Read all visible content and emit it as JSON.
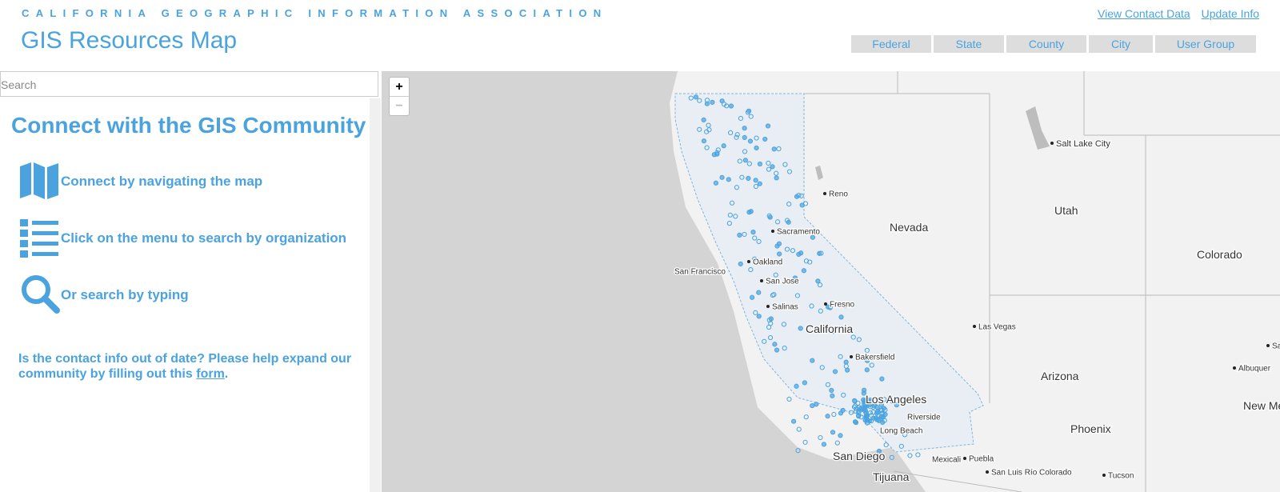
{
  "header": {
    "org": "CALIFORNIA GEOGRAPHIC INFORMATION ASSOCIATION",
    "title": "GIS Resources Map",
    "links": [
      "View Contact Data",
      "Update Info"
    ],
    "filters": [
      "Federal",
      "State",
      "County",
      "City",
      "User Group"
    ]
  },
  "sidebar": {
    "search_placeholder": "Search",
    "heading": "Connect with the GIS Community",
    "steps": [
      "Connect by navigating the map",
      "Click on the menu to search by organization",
      "Or search by typing"
    ],
    "note": "Is the contact info out of date? Please help expand our community by filling out this",
    "note_link": "form",
    "note_end": "."
  },
  "map": {
    "zoom_in": "+",
    "zoom_out": "−",
    "labels": [
      "Salt Lake City",
      "Reno",
      "Nevada",
      "Utah",
      "Colorado",
      "Sacramento",
      "Oakland",
      "San Francisco",
      "San Jose",
      "Salinas",
      "Fresno",
      "California",
      "Las Vegas",
      "Bakersfield",
      "Arizona",
      "Albuquer",
      "Los Angeles",
      "Riverside",
      "Long Beach",
      "Phoenix",
      "New Mex",
      "San Diego",
      "Mexicali",
      "Puebla",
      "San Luis Río Colorado",
      "Tucson",
      "Tijuana",
      "Sa"
    ]
  }
}
